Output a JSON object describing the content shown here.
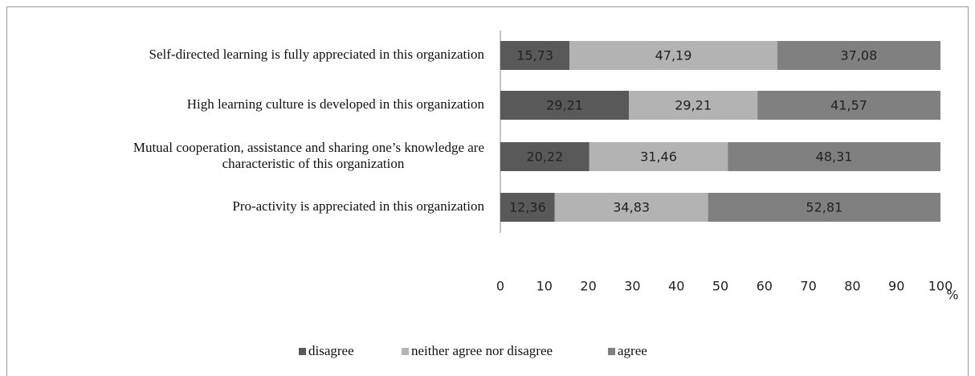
{
  "chart_data": {
    "type": "stacked-bar-horizontal",
    "categories": [
      "Self-directed learning is fully appreciated in this organization",
      "High learning culture is developed in this organization",
      "Mutual cooperation, assistance and sharing one’s knowledge are\ncharacteristic of this organization",
      "Pro-activity is appreciated in this organization"
    ],
    "series": [
      {
        "name": "disagree",
        "color": "#595959",
        "values": [
          15.73,
          29.21,
          20.22,
          12.36
        ],
        "value_labels": [
          "15,73",
          "29,21",
          "20,22",
          "12,36"
        ]
      },
      {
        "name": "neither agree nor disagree",
        "color": "#b3b3b3",
        "values": [
          47.19,
          29.21,
          31.46,
          34.83
        ],
        "value_labels": [
          "47,19",
          "29,21",
          "31,46",
          "34,83"
        ]
      },
      {
        "name": "agree",
        "color": "#808080",
        "values": [
          37.08,
          41.57,
          48.31,
          52.81
        ],
        "value_labels": [
          "37,08",
          "41,57",
          "48,31",
          "52,81"
        ]
      }
    ],
    "xlabel": "%",
    "xlim": [
      0,
      100
    ],
    "xticks": [
      0,
      10,
      20,
      30,
      40,
      50,
      60,
      70,
      80,
      90,
      100
    ],
    "legend": "bottom"
  }
}
